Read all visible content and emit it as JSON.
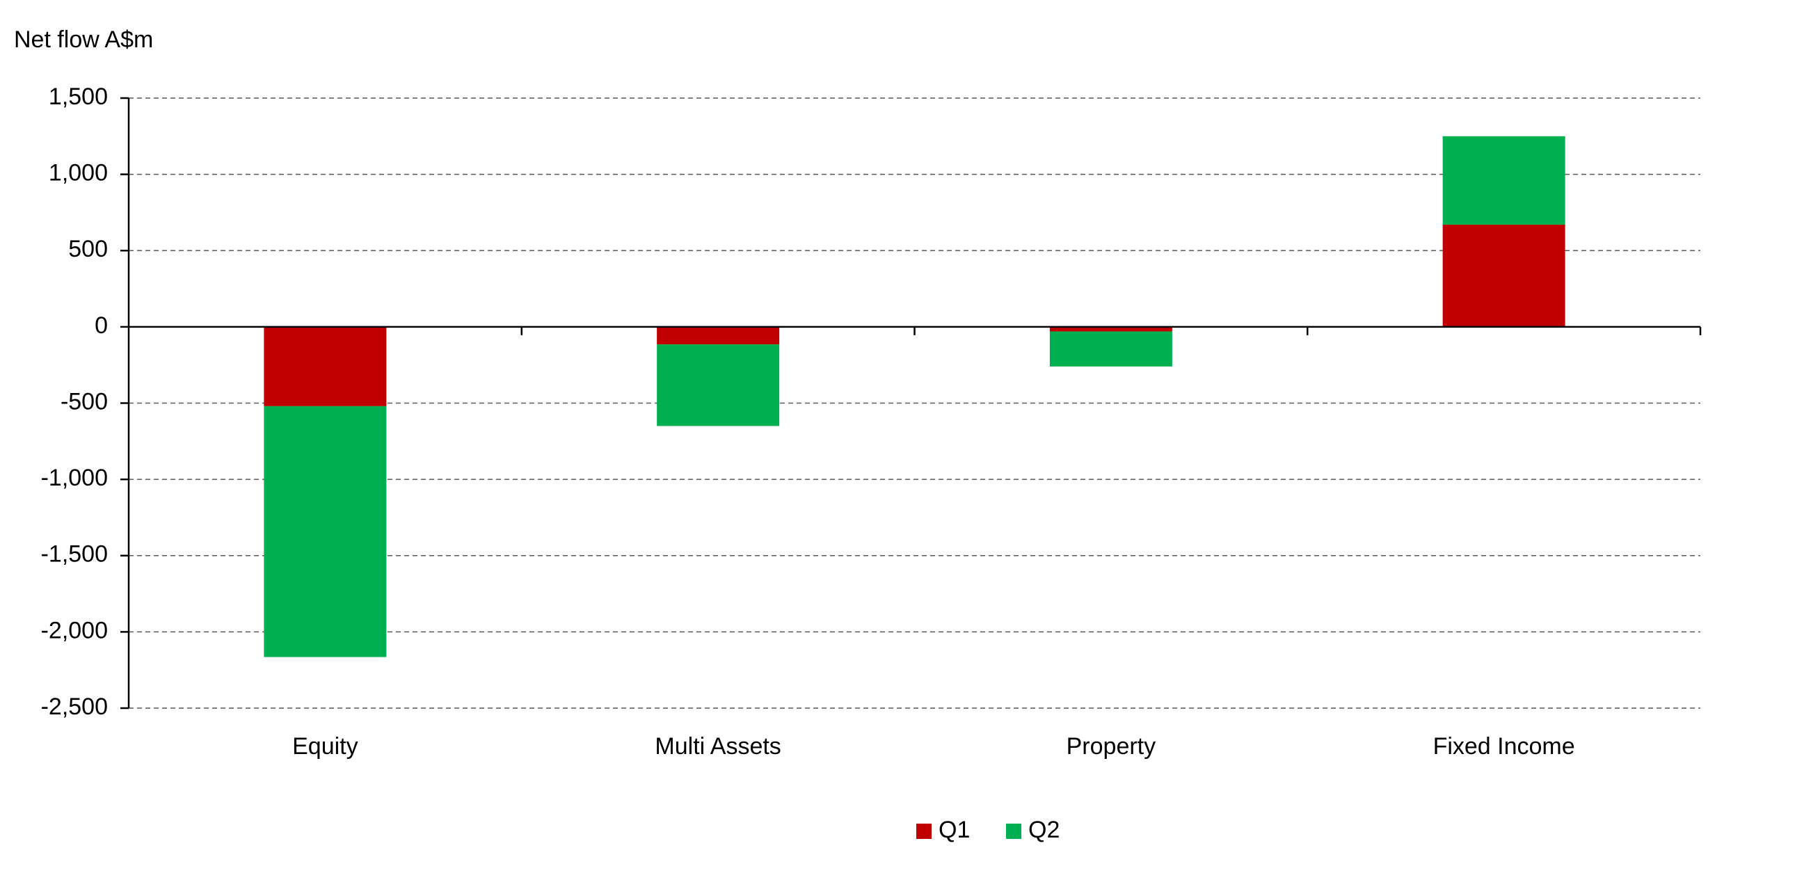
{
  "chart_data": {
    "type": "stacked_bar",
    "y_label": "Net flow A$m",
    "categories": [
      "Equity",
      "Multi Assets",
      "Property",
      "Fixed Income"
    ],
    "series": [
      {
        "name": "Q1",
        "color": "#c00000",
        "values": [
          -520,
          -115,
          -30,
          670
        ]
      },
      {
        "name": "Q2",
        "color": "#00b050",
        "values": [
          -1645,
          -535,
          -230,
          580
        ]
      }
    ],
    "ylim": [
      -2500,
      1500
    ],
    "yticks": [
      {
        "value": -2500,
        "label": "-2,500"
      },
      {
        "value": -2000,
        "label": "-2,000"
      },
      {
        "value": -1500,
        "label": "-1,500"
      },
      {
        "value": -1000,
        "label": "-1,000"
      },
      -500,
      0,
      500,
      {
        "value": 1000,
        "label": "1,000"
      },
      {
        "value": 1500,
        "label": "1,500"
      }
    ],
    "grid": true,
    "legend": "bottom"
  }
}
